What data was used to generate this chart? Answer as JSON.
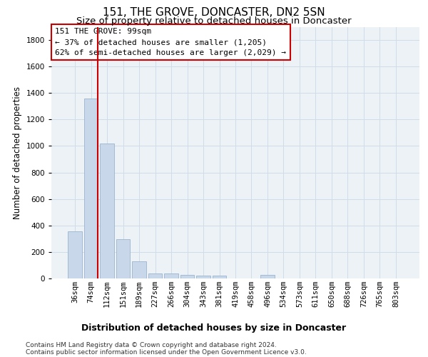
{
  "title1": "151, THE GROVE, DONCASTER, DN2 5SN",
  "title2": "Size of property relative to detached houses in Doncaster",
  "xlabel": "Distribution of detached houses by size in Doncaster",
  "ylabel": "Number of detached properties",
  "categories": [
    "36sqm",
    "74sqm",
    "112sqm",
    "151sqm",
    "189sqm",
    "227sqm",
    "266sqm",
    "304sqm",
    "343sqm",
    "381sqm",
    "419sqm",
    "458sqm",
    "496sqm",
    "534sqm",
    "573sqm",
    "611sqm",
    "650sqm",
    "688sqm",
    "726sqm",
    "765sqm",
    "803sqm"
  ],
  "values": [
    355,
    1360,
    1020,
    295,
    130,
    38,
    38,
    25,
    20,
    20,
    0,
    0,
    25,
    0,
    0,
    0,
    0,
    0,
    0,
    0,
    0
  ],
  "bar_color": "#c8d8ea",
  "bar_edge_color": "#9ab4cc",
  "grid_color": "#d0dce8",
  "background_color": "#edf2f7",
  "annotation_box_color": "#ffffff",
  "annotation_border_color": "#cc0000",
  "vline_color": "#cc0000",
  "vline_x_index": 1,
  "annotation_text_line1": "151 THE GROVE: 99sqm",
  "annotation_text_line2": "← 37% of detached houses are smaller (1,205)",
  "annotation_text_line3": "62% of semi-detached houses are larger (2,029) →",
  "ylim": [
    0,
    1900
  ],
  "yticks": [
    0,
    200,
    400,
    600,
    800,
    1000,
    1200,
    1400,
    1600,
    1800
  ],
  "footnote1": "Contains HM Land Registry data © Crown copyright and database right 2024.",
  "footnote2": "Contains public sector information licensed under the Open Government Licence v3.0.",
  "title1_fontsize": 11,
  "title2_fontsize": 9.5,
  "xlabel_fontsize": 9,
  "ylabel_fontsize": 8.5,
  "tick_fontsize": 7.5,
  "annotation_fontsize": 8,
  "footnote_fontsize": 6.5
}
